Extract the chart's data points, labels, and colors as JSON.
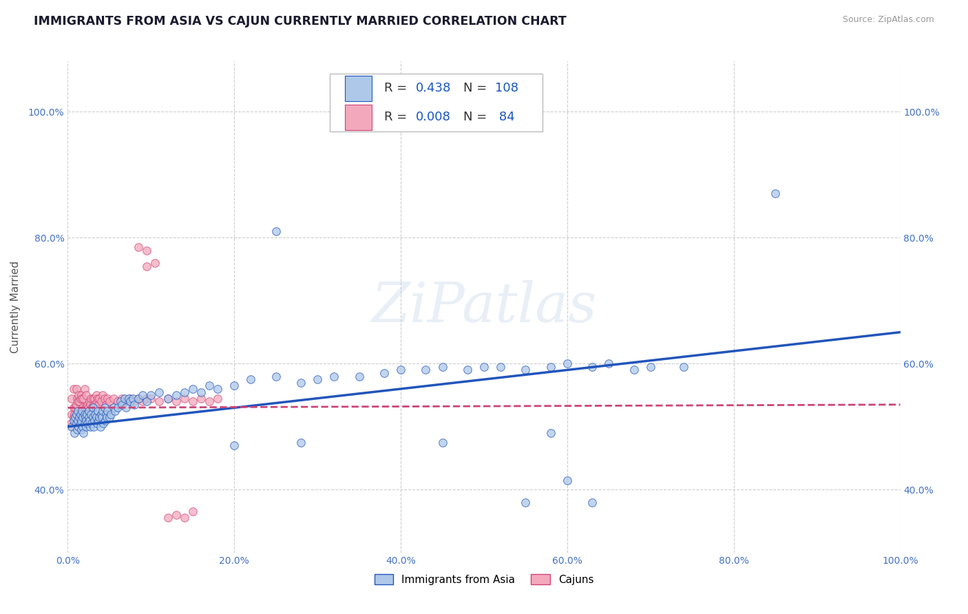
{
  "title": "IMMIGRANTS FROM ASIA VS CAJUN CURRENTLY MARRIED CORRELATION CHART",
  "source": "Source: ZipAtlas.com",
  "ylabel": "Currently Married",
  "legend_labels": [
    "Immigrants from Asia",
    "Cajuns"
  ],
  "r_asia": 0.438,
  "n_asia": 108,
  "r_cajun": 0.008,
  "n_cajun": 84,
  "xlim": [
    0.0,
    1.0
  ],
  "ylim": [
    0.3,
    1.08
  ],
  "xtick_vals": [
    0.0,
    0.2,
    0.4,
    0.6,
    0.8,
    1.0
  ],
  "ytick_vals": [
    0.4,
    0.6,
    0.8,
    1.0
  ],
  "color_asia": "#adc8e8",
  "color_cajun": "#f4a8bc",
  "line_color_asia": "#2255bb",
  "line_color_cajun": "#cc4477",
  "watermark": "ZiPatlas",
  "background_color": "#ffffff",
  "grid_color": "#cccccc",
  "asia_line_x0": 0.0,
  "asia_line_y0": 0.5,
  "asia_line_x1": 1.0,
  "asia_line_y1": 0.65,
  "cajun_line_x0": 0.0,
  "cajun_line_y0": 0.53,
  "cajun_line_x1": 1.0,
  "cajun_line_y1": 0.535,
  "asia_x": [
    0.005,
    0.007,
    0.008,
    0.009,
    0.01,
    0.01,
    0.011,
    0.012,
    0.012,
    0.013,
    0.014,
    0.015,
    0.015,
    0.016,
    0.016,
    0.017,
    0.018,
    0.018,
    0.019,
    0.02,
    0.02,
    0.021,
    0.022,
    0.022,
    0.023,
    0.024,
    0.025,
    0.025,
    0.026,
    0.027,
    0.028,
    0.029,
    0.03,
    0.03,
    0.031,
    0.032,
    0.033,
    0.034,
    0.035,
    0.036,
    0.037,
    0.038,
    0.039,
    0.04,
    0.041,
    0.042,
    0.043,
    0.044,
    0.045,
    0.046,
    0.047,
    0.048,
    0.05,
    0.052,
    0.055,
    0.057,
    0.06,
    0.063,
    0.065,
    0.068,
    0.07,
    0.073,
    0.075,
    0.078,
    0.08,
    0.085,
    0.09,
    0.095,
    0.1,
    0.11,
    0.12,
    0.13,
    0.14,
    0.15,
    0.16,
    0.17,
    0.18,
    0.2,
    0.22,
    0.25,
    0.28,
    0.3,
    0.32,
    0.35,
    0.38,
    0.4,
    0.43,
    0.45,
    0.48,
    0.5,
    0.52,
    0.55,
    0.58,
    0.6,
    0.63,
    0.65,
    0.68,
    0.7,
    0.74,
    0.85,
    0.2,
    0.25,
    0.28,
    0.45,
    0.55,
    0.58,
    0.6,
    0.63
  ],
  "asia_y": [
    0.5,
    0.51,
    0.49,
    0.515,
    0.505,
    0.52,
    0.495,
    0.51,
    0.525,
    0.5,
    0.515,
    0.505,
    0.52,
    0.495,
    0.51,
    0.525,
    0.5,
    0.515,
    0.49,
    0.505,
    0.52,
    0.515,
    0.5,
    0.51,
    0.52,
    0.505,
    0.515,
    0.525,
    0.51,
    0.5,
    0.52,
    0.505,
    0.515,
    0.53,
    0.5,
    0.51,
    0.52,
    0.515,
    0.505,
    0.525,
    0.51,
    0.515,
    0.5,
    0.52,
    0.515,
    0.525,
    0.505,
    0.53,
    0.51,
    0.52,
    0.515,
    0.525,
    0.515,
    0.52,
    0.53,
    0.525,
    0.53,
    0.54,
    0.535,
    0.545,
    0.53,
    0.545,
    0.54,
    0.545,
    0.535,
    0.545,
    0.55,
    0.54,
    0.55,
    0.555,
    0.545,
    0.55,
    0.555,
    0.56,
    0.555,
    0.565,
    0.56,
    0.565,
    0.575,
    0.58,
    0.57,
    0.575,
    0.58,
    0.58,
    0.585,
    0.59,
    0.59,
    0.595,
    0.59,
    0.595,
    0.595,
    0.59,
    0.595,
    0.6,
    0.595,
    0.6,
    0.59,
    0.595,
    0.595,
    0.87,
    0.47,
    0.81,
    0.475,
    0.475,
    0.38,
    0.49,
    0.415,
    0.38
  ],
  "cajun_x": [
    0.004,
    0.005,
    0.005,
    0.006,
    0.007,
    0.007,
    0.007,
    0.008,
    0.008,
    0.009,
    0.009,
    0.01,
    0.01,
    0.01,
    0.011,
    0.011,
    0.012,
    0.012,
    0.013,
    0.013,
    0.014,
    0.014,
    0.015,
    0.015,
    0.016,
    0.016,
    0.017,
    0.017,
    0.018,
    0.019,
    0.019,
    0.02,
    0.02,
    0.021,
    0.022,
    0.022,
    0.023,
    0.024,
    0.025,
    0.026,
    0.027,
    0.028,
    0.029,
    0.03,
    0.031,
    0.032,
    0.033,
    0.034,
    0.035,
    0.036,
    0.037,
    0.038,
    0.04,
    0.042,
    0.044,
    0.046,
    0.048,
    0.05,
    0.055,
    0.06,
    0.065,
    0.07,
    0.075,
    0.08,
    0.085,
    0.09,
    0.095,
    0.1,
    0.11,
    0.12,
    0.13,
    0.14,
    0.15,
    0.16,
    0.17,
    0.18,
    0.085,
    0.095,
    0.095,
    0.105,
    0.12,
    0.13,
    0.14,
    0.15
  ],
  "cajun_y": [
    0.505,
    0.52,
    0.545,
    0.5,
    0.515,
    0.53,
    0.56,
    0.505,
    0.52,
    0.51,
    0.53,
    0.515,
    0.535,
    0.56,
    0.51,
    0.545,
    0.51,
    0.54,
    0.525,
    0.55,
    0.51,
    0.54,
    0.525,
    0.545,
    0.52,
    0.55,
    0.52,
    0.545,
    0.53,
    0.52,
    0.545,
    0.525,
    0.56,
    0.53,
    0.52,
    0.55,
    0.53,
    0.535,
    0.53,
    0.54,
    0.535,
    0.545,
    0.53,
    0.545,
    0.535,
    0.545,
    0.535,
    0.55,
    0.54,
    0.545,
    0.535,
    0.545,
    0.54,
    0.55,
    0.545,
    0.535,
    0.545,
    0.54,
    0.545,
    0.54,
    0.545,
    0.54,
    0.545,
    0.54,
    0.545,
    0.54,
    0.545,
    0.545,
    0.54,
    0.545,
    0.54,
    0.545,
    0.54,
    0.545,
    0.54,
    0.545,
    0.785,
    0.78,
    0.755,
    0.76,
    0.355,
    0.36,
    0.355,
    0.365
  ]
}
